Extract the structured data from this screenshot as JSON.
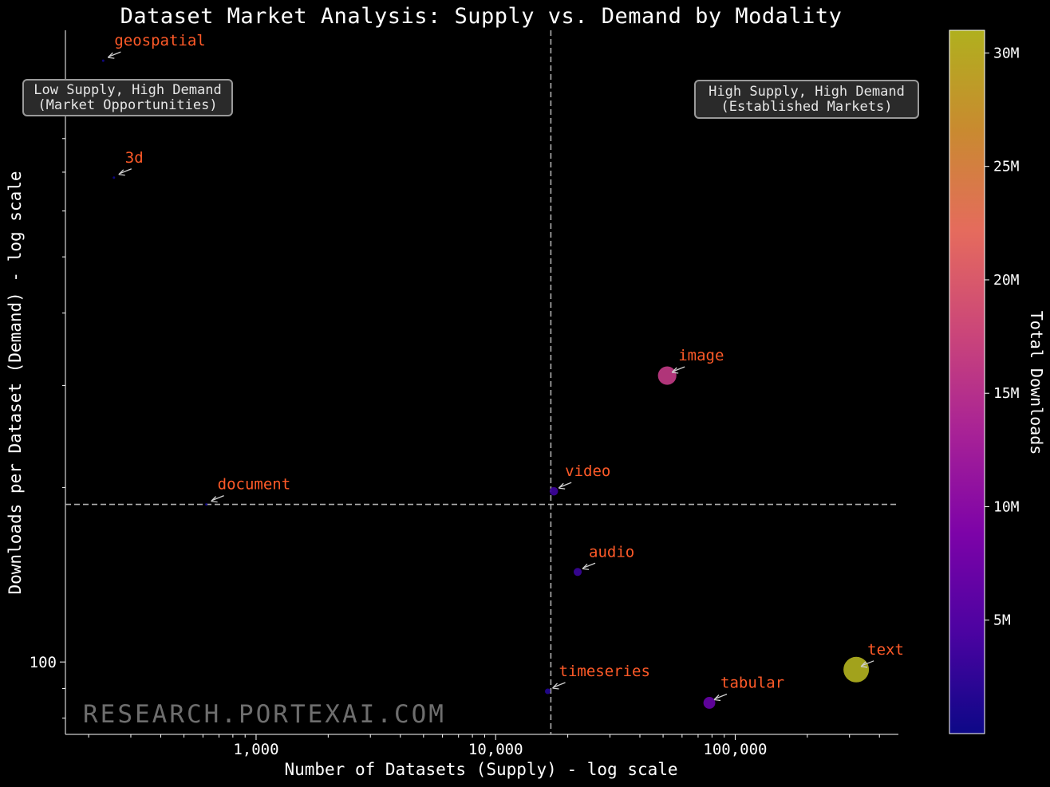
{
  "title": "Dataset Market Analysis: Supply vs. Demand by Modality",
  "watermark": "RESEARCH.PORTEXAI.COM",
  "quadrants": {
    "top_left": [
      "Low Supply, High Demand",
      "(Market Opportunities)"
    ],
    "top_right": [
      "High Supply, High Demand",
      "(Established Markets)"
    ]
  },
  "colors": {
    "background": "#000000",
    "label": "#ff5a28",
    "reference_line": "#b0b0b0",
    "colormap": [
      "#0d0887",
      "#4b03a1",
      "#7d03a8",
      "#a82296",
      "#cb4679",
      "#e56b5d",
      "#c98a30",
      "#b0b01e"
    ]
  },
  "chart_data": {
    "type": "scatter",
    "title": "Dataset Market Analysis: Supply vs. Demand by Modality",
    "xlabel": "Number of Datasets (Supply) - log scale",
    "ylabel": "Downloads per Dataset (Demand) - log scale",
    "xscale": "log",
    "yscale": "log",
    "xlim": [
      160,
      480000
    ],
    "ylim": [
      75,
      1230
    ],
    "x_ticks": [
      1000,
      10000,
      100000
    ],
    "x_tick_labels": [
      "1,000",
      "10,000",
      "100,000"
    ],
    "y_ticks": [
      100
    ],
    "y_tick_labels": [
      "100"
    ],
    "reference_lines": {
      "x": 17000,
      "y": 187
    },
    "colorbar": {
      "label": "Total Downloads",
      "min": 0,
      "max": 31000000,
      "ticks": [
        5000000,
        10000000,
        15000000,
        20000000,
        25000000,
        30000000
      ],
      "tick_labels": [
        "5M",
        "10M",
        "15M",
        "20M",
        "25M",
        "30M"
      ]
    },
    "points": [
      {
        "label": "geospatial",
        "x": 230,
        "y": 1090,
        "total": 250000
      },
      {
        "label": "3d",
        "x": 255,
        "y": 685,
        "total": 170000
      },
      {
        "label": "image",
        "x": 52000,
        "y": 312,
        "total": 16200000
      },
      {
        "label": "document",
        "x": 620,
        "y": 187,
        "total": 115000
      },
      {
        "label": "video",
        "x": 17500,
        "y": 197,
        "total": 3400000
      },
      {
        "label": "audio",
        "x": 22000,
        "y": 143,
        "total": 3100000
      },
      {
        "label": "text",
        "x": 320000,
        "y": 97,
        "total": 31000000
      },
      {
        "label": "timeseries",
        "x": 16500,
        "y": 89,
        "total": 1500000
      },
      {
        "label": "tabular",
        "x": 78000,
        "y": 85,
        "total": 6700000
      }
    ]
  }
}
